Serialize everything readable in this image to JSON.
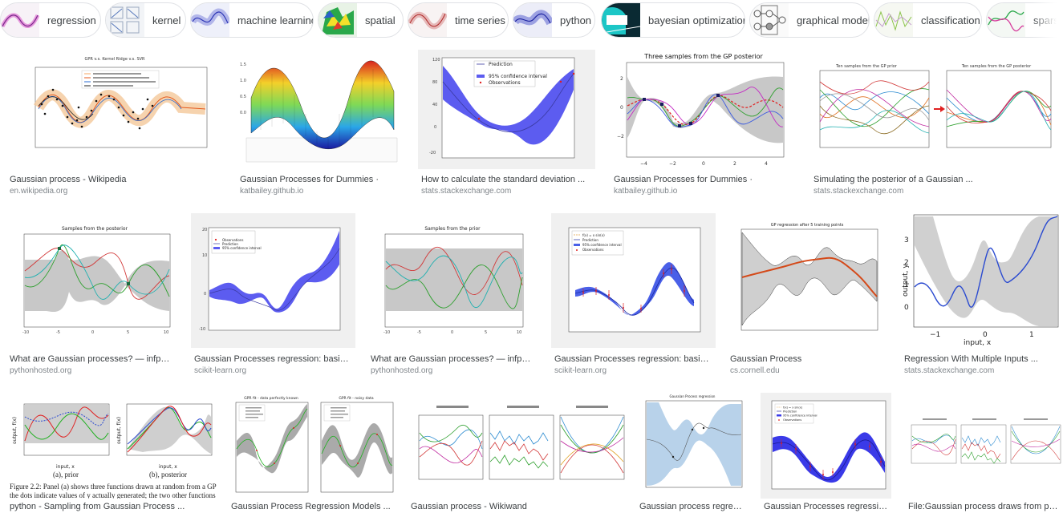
{
  "chips": [
    {
      "label": "regression",
      "thumb": "regression-thumb-icon"
    },
    {
      "label": "kernel",
      "thumb": "kernel-thumb-icon"
    },
    {
      "label": "machine learning",
      "thumb": "machine-learning-thumb-icon"
    },
    {
      "label": "spatial",
      "thumb": "spatial-thumb-icon"
    },
    {
      "label": "time series",
      "thumb": "time-series-thumb-icon"
    },
    {
      "label": "python",
      "thumb": "python-thumb-icon"
    },
    {
      "label": "bayesian optimization",
      "thumb": "bayesian-optimization-thumb-icon"
    },
    {
      "label": "graphical model",
      "thumb": "graphical-model-thumb-icon"
    },
    {
      "label": "classification",
      "thumb": "classification-thumb-icon"
    },
    {
      "label": "spars",
      "thumb": "sparse-thumb-icon"
    }
  ],
  "results": [
    {
      "title": "Gaussian process - Wikipedia",
      "source": "en.wikipedia.org",
      "image": "gpr-vs-kernel-ridge-plot"
    },
    {
      "title": "Gaussian Processes for Dummies ·",
      "source": "katbailey.github.io",
      "image": "3d-surface-plot"
    },
    {
      "title": "How to calculate the standard deviation ...",
      "source": "stats.stackexchange.com",
      "image": "prediction-confidence-plot"
    },
    {
      "title": "Gaussian Processes for Dummies ·",
      "source": "katbailey.github.io",
      "image": "three-samples-posterior-plot"
    },
    {
      "title": "Simulating the posterior of a Gaussian ...",
      "source": "stats.stackexchange.com",
      "image": "prior-to-posterior-plot"
    },
    {
      "title": "What are Gaussian processes? — infpy 0 ...",
      "source": "pythonhosted.org",
      "image": "samples-posterior-plot"
    },
    {
      "title": "Gaussian Processes regression: basic ...",
      "source": "scikit-learn.org",
      "image": "sklearn-gpr-plot"
    },
    {
      "title": "What are Gaussian processes? — infpy 0 ...",
      "source": "pythonhosted.org",
      "image": "samples-prior-plot"
    },
    {
      "title": "Gaussian Processes regression: basic ...",
      "source": "scikit-learn.org",
      "image": "sklearn-gpr-noisy-plot"
    },
    {
      "title": "Gaussian Process",
      "source": "cs.cornell.edu",
      "image": "gp-regression-training-points-plot"
    },
    {
      "title": "Regression With Multiple Inputs ...",
      "source": "stats.stackexchange.com",
      "image": "output-vs-input-plot"
    },
    {
      "title": "python - Sampling from Gaussian Process ...",
      "source": "",
      "image": "prior-posterior-figure"
    },
    {
      "title": "Gaussian Process Regression Models ...",
      "source": "",
      "image": "gpr-fit-comparison-plot"
    },
    {
      "title": "Gaussian process - Wikiwand",
      "source": "",
      "image": "kernel-draws-plot"
    },
    {
      "title": "Gaussian process regressio...",
      "source": "",
      "image": "gaussian-process-regression-plot"
    },
    {
      "title": "Gaussian Processes regression: ...",
      "source": "",
      "image": "sklearn-gpr-noisy-plot-2"
    },
    {
      "title": "File:Gaussian process draws from prior ...",
      "source": "",
      "image": "gp-draws-from-prior-plot"
    }
  ],
  "figure_text": {
    "wiki_title": "GPR v.s. Kernel Ridge v.s. SVR",
    "three_samples": "Three samples from the GP posterior",
    "ten_prior": "Ten samples from the GP prior",
    "ten_posterior": "Ten samples from the GP posterior",
    "samples_posterior": "Samples from the posterior",
    "samples_prior": "Samples from the prior",
    "gp_regression_5": "GP regression after 5 training points",
    "gp_regression": "Gaussian Process regression",
    "gpr_fit_perfect": "GPR fit - data perfectly known",
    "gpr_fit_noisy": "GPR fit - noisy data",
    "legend_prediction": "Prediction",
    "legend_ci": "95% confidence interval",
    "legend_obs": "Observations",
    "legend_fx": "f(x) = x sin(x)",
    "output_y": "output, y",
    "input_x": "input, x",
    "output_fx": "output, f(x)",
    "prior_caption": "(a), prior",
    "posterior_caption": "(b), posterior",
    "figure_caption_1": "Figure 2.2: Panel (a) shows three functions drawn at random from a GP prior",
    "figure_caption_2": "the dots indicate values of y actually generated; the two other functions have (less"
  }
}
